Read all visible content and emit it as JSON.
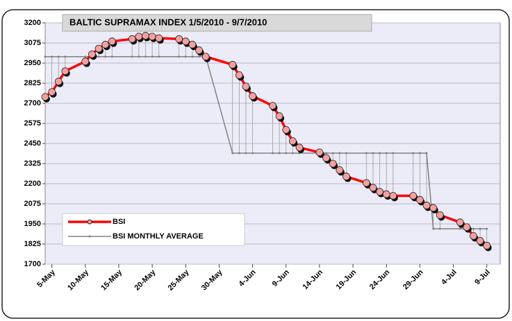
{
  "chart_data": {
    "type": "line",
    "title": "BALTIC SUPRAMAX INDEX  1/5/2010 - 9/7/2010",
    "x": [
      "4-May",
      "5-May",
      "6-May",
      "7-May",
      "10-May",
      "11-May",
      "12-May",
      "13-May",
      "14-May",
      "17-May",
      "18-May",
      "19-May",
      "20-May",
      "21-May",
      "24-May",
      "25-May",
      "26-May",
      "27-May",
      "28-May",
      "1-Jun",
      "2-Jun",
      "3-Jun",
      "4-Jun",
      "7-Jun",
      "8-Jun",
      "9-Jun",
      "10-Jun",
      "11-Jun",
      "14-Jun",
      "15-Jun",
      "16-Jun",
      "17-Jun",
      "18-Jun",
      "21-Jun",
      "22-Jun",
      "23-Jun",
      "24-Jun",
      "25-Jun",
      "28-Jun",
      "29-Jun",
      "30-Jun",
      "1-Jul",
      "2-Jul",
      "5-Jul",
      "6-Jul",
      "7-Jul",
      "8-Jul",
      "9-Jul"
    ],
    "series": [
      {
        "name": "BSI",
        "color": "#ff0000",
        "marker_color": "#f4a0a0",
        "values": [
          2740,
          2770,
          2835,
          2900,
          2960,
          3005,
          3040,
          3065,
          3085,
          3100,
          3115,
          3120,
          3115,
          3105,
          3100,
          3085,
          3065,
          3030,
          2990,
          2940,
          2875,
          2805,
          2745,
          2685,
          2620,
          2535,
          2465,
          2425,
          2395,
          2360,
          2325,
          2285,
          2245,
          2205,
          2175,
          2150,
          2135,
          2125,
          2125,
          2100,
          2065,
          2050,
          2005,
          1960,
          1930,
          1875,
          1845,
          1815
        ]
      },
      {
        "name": "BSI MONTHLY AVERAGE",
        "color": "#808080",
        "values": [
          2990,
          2990,
          2990,
          2990,
          2990,
          2990,
          2990,
          2990,
          2990,
          2990,
          2990,
          2990,
          2990,
          2990,
          2990,
          2990,
          2990,
          2990,
          2990,
          2390,
          2390,
          2390,
          2390,
          2390,
          2390,
          2390,
          2390,
          2390,
          2390,
          2390,
          2390,
          2390,
          2390,
          2390,
          2390,
          2390,
          2390,
          2390,
          2390,
          2390,
          2390,
          1920,
          1920,
          1920,
          1920,
          1920,
          1920,
          1920
        ]
      }
    ],
    "xlim": [
      "4-May",
      "11-Jul"
    ],
    "xticks": [
      "5-May",
      "10-May",
      "15-May",
      "20-May",
      "25-May",
      "30-May",
      "4-Jun",
      "9-Jun",
      "14-Jun",
      "19-Jun",
      "24-Jun",
      "29-Jun",
      "4-Jul",
      "9-Jul"
    ],
    "ylim": [
      1700,
      3200
    ],
    "yticks": [
      1700,
      1825,
      1950,
      2075,
      2200,
      2325,
      2450,
      2575,
      2700,
      2825,
      2950,
      3075,
      3200
    ],
    "grid": true,
    "drop_lines": true,
    "legend": "lower left"
  }
}
